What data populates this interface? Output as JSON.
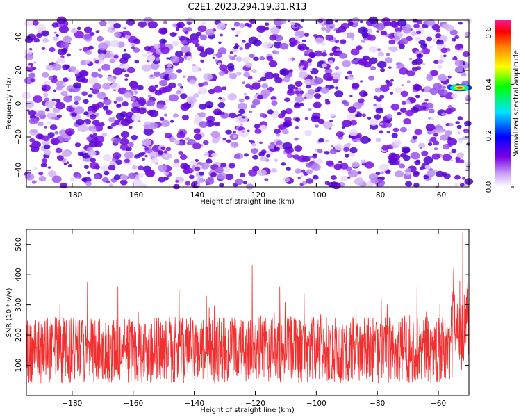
{
  "figure": {
    "title": "C2E1.2023.294.19.31.R13"
  },
  "chart_data": [
    {
      "type": "heatmap",
      "title": "C2E1.2023.294.19.31.R13",
      "xlabel": "Height of straight line (km)",
      "ylabel": "Frequency (Hz)",
      "xlim": [
        -195,
        -50
      ],
      "ylim": [
        -50,
        50
      ],
      "x_ticks": [
        -180,
        -160,
        -140,
        -120,
        -100,
        -80,
        -60
      ],
      "y_ticks": [
        -40,
        -20,
        0,
        20,
        40
      ],
      "colorbar": {
        "label": "Normalized spectral amplitude",
        "range": [
          0,
          0.65
        ],
        "ticks": [
          0.0,
          0.2,
          0.4,
          0.6
        ],
        "colormap": [
          "#ffffff",
          "#a855f7",
          "#6a00e0",
          "#0000ff",
          "#00e0ff",
          "#00ff00",
          "#ffff00",
          "#ff8000",
          "#ff0000",
          "#ff1493"
        ]
      },
      "description_values": {
        "background_amplitude_range": [
          0.0,
          0.2
        ],
        "peak": {
          "x_km": -53,
          "frequency_hz": 9.5,
          "amplitude": 0.55
        }
      }
    },
    {
      "type": "line",
      "xlabel": "Height of straight line (km)",
      "ylabel": "SNR (10 * v/v)",
      "xlim": [
        -195,
        -50
      ],
      "ylim": [
        0,
        550
      ],
      "x_ticks": [
        -180,
        -160,
        -140,
        -120,
        -100,
        -80,
        -60
      ],
      "y_ticks": [
        100,
        200,
        300,
        400,
        500
      ],
      "series": [
        {
          "color": "#f03030",
          "typical_range": [
            40,
            260
          ],
          "spikes": [
            {
              "x": -184,
              "y": 300
            },
            {
              "x": -175,
              "y": 375
            },
            {
              "x": -165,
              "y": 360
            },
            {
              "x": -145,
              "y": 350
            },
            {
              "x": -136,
              "y": 330
            },
            {
              "x": -121,
              "y": 430
            },
            {
              "x": -112,
              "y": 360
            },
            {
              "x": -104,
              "y": 340
            },
            {
              "x": -87,
              "y": 360
            },
            {
              "x": -67,
              "y": 360
            },
            {
              "x": -55,
              "y": 420
            },
            {
              "x": -52,
              "y": 540
            }
          ]
        }
      ]
    }
  ]
}
